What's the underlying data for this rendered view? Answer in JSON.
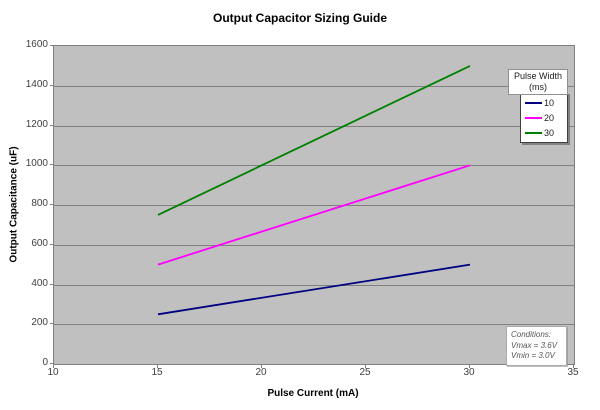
{
  "chart_data": {
    "type": "line",
    "title": "Output Capacitor Sizing Guide",
    "xlabel": "Pulse Current (mA)",
    "ylabel": "Output Capacitance (uF)",
    "xlim": [
      10,
      35
    ],
    "ylim": [
      0,
      1600
    ],
    "xticks": [
      10,
      15,
      20,
      25,
      30,
      35
    ],
    "yticks": [
      0,
      200,
      400,
      600,
      800,
      1000,
      1200,
      1400,
      1600
    ],
    "grid": "horizontal-only",
    "legend_position": "top-right-inside",
    "series": [
      {
        "name": "10",
        "color": "#000080",
        "x": [
          15,
          30
        ],
        "y": [
          250,
          500
        ]
      },
      {
        "name": "20",
        "color": "#FF00FF",
        "x": [
          15,
          30
        ],
        "y": [
          500,
          1000
        ]
      },
      {
        "name": "30",
        "color": "#008000",
        "x": [
          15,
          30
        ],
        "y": [
          750,
          1500
        ]
      }
    ]
  },
  "legend": {
    "title_line1": "Pulse Width",
    "title_line2": "(ms)"
  },
  "annotation": {
    "line1": "Conditions:",
    "line2": "Vmax = 3.6V",
    "line3": "Vmin = 3.0V"
  },
  "colors": {
    "plot_background": "#C0C0C0",
    "gridline": "#808080",
    "axis": "#808080",
    "tick_text": "#404040",
    "title_text": "#000000"
  }
}
